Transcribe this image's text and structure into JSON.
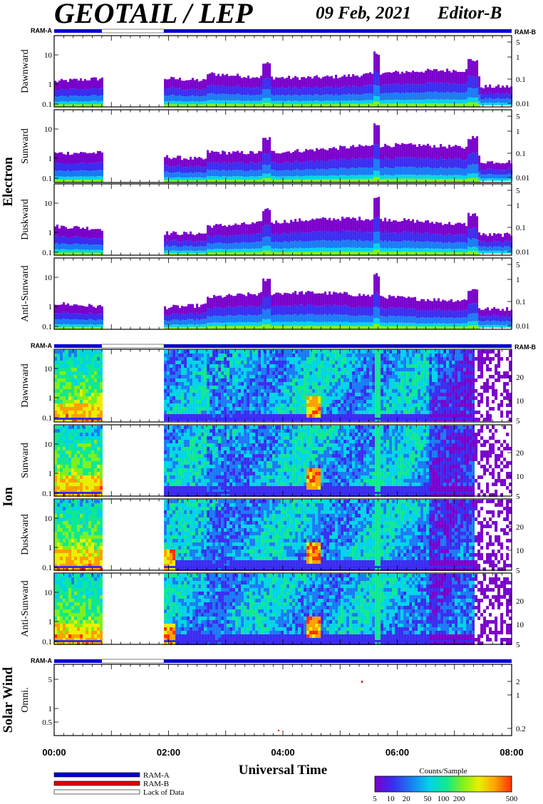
{
  "header": {
    "title": "GEOTAIL / LEP",
    "date": "09 Feb, 2021",
    "editor": "Editor-B"
  },
  "colors": {
    "ram_a": "#0000cc",
    "ram_b": "#dd0000",
    "lack_of_data": "#ffffff",
    "colormap": [
      "#7a00cc",
      "#3a2cf0",
      "#1a7af5",
      "#00d4e8",
      "#10e890",
      "#7ef020",
      "#e8f000",
      "#ffa000",
      "#ff3000"
    ]
  },
  "labels": {
    "ram_a": "RAM-A",
    "ram_b": "RAM-B",
    "electron": "Electron",
    "ion": "Ion",
    "solar_wind": "Solar Wind",
    "x_axis": "Universal Time"
  },
  "legend": {
    "ram_a": "RAM-A",
    "ram_b": "RAM-B",
    "lack_of_data": "Lack of Data"
  },
  "colorbar": {
    "title": "Counts/Sample",
    "ticks": [
      "5",
      "10",
      "20",
      "50",
      "100",
      "200",
      "500"
    ]
  },
  "chart_data": {
    "type": "heatmap",
    "x_range_hours": [
      0,
      8
    ],
    "x_ticks": [
      "00:00",
      "02:00",
      "04:00",
      "06:00",
      "08:00"
    ],
    "data_gap_hours": [
      0.83,
      1.92
    ],
    "groups": [
      {
        "name": "Electron",
        "left_ticks": [
          "10",
          "1",
          "0.1"
        ],
        "right_ticks": [
          "5",
          "1",
          "0.1",
          "0.01"
        ],
        "panels": [
          {
            "label": "Dawnward"
          },
          {
            "label": "Sunward"
          },
          {
            "label": "Duskward"
          },
          {
            "label": "Anti-Sunward"
          }
        ]
      },
      {
        "name": "Ion",
        "left_ticks": [
          "10",
          "1",
          "0.1"
        ],
        "right_ticks": [
          "20",
          "10",
          "5"
        ],
        "panels": [
          {
            "label": "Dawnward"
          },
          {
            "label": "Sunward"
          },
          {
            "label": "Duskward"
          },
          {
            "label": "Anti-Sunward"
          }
        ]
      },
      {
        "name": "Solar Wind",
        "left_ticks": [
          "5",
          "1",
          "0.5"
        ],
        "right_ticks": [
          "2",
          "1",
          "0.2"
        ],
        "panels": [
          {
            "label": "Omni."
          }
        ]
      }
    ]
  }
}
